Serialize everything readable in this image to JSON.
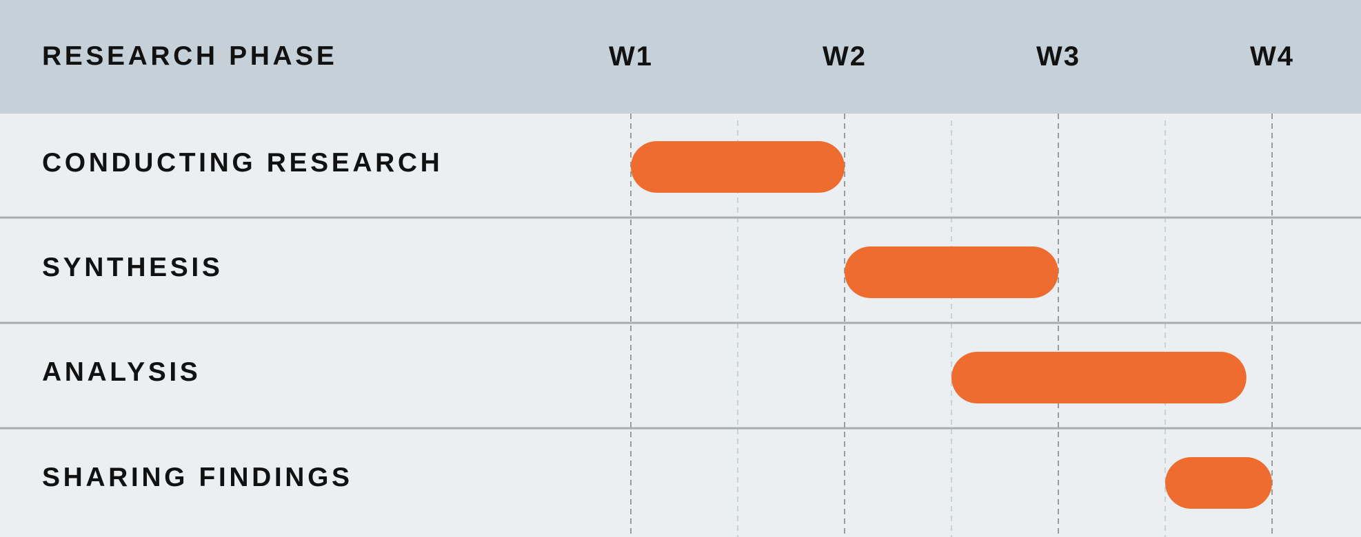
{
  "chart_data": {
    "type": "gantt",
    "title": "RESEARCH PHASE",
    "x_unit": "week",
    "xlim": [
      1,
      4
    ],
    "x_ticks": [
      1,
      2,
      3,
      4
    ],
    "tick_labels": [
      "W1",
      "W2",
      "W3",
      "W4"
    ],
    "minor_ticks": [
      1.5,
      2.5,
      3.5
    ],
    "tasks": [
      {
        "label": "CONDUCTING RESEARCH",
        "start": 1.0,
        "end": 2.0
      },
      {
        "label": "SYNTHESIS",
        "start": 2.0,
        "end": 3.0
      },
      {
        "label": "ANALYSIS",
        "start": 2.5,
        "end": 3.88
      },
      {
        "label": "SHARING FINDINGS",
        "start": 3.5,
        "end": 4.0
      }
    ],
    "colors": {
      "bar": "#ee6c2f",
      "header_bg": "#c5d0d8",
      "body_bg": "#eceff1",
      "major_grid": "#9a9a9a",
      "minor_grid": "#c9d4da",
      "row_divider": "#a9abad",
      "text": "#111111"
    }
  }
}
